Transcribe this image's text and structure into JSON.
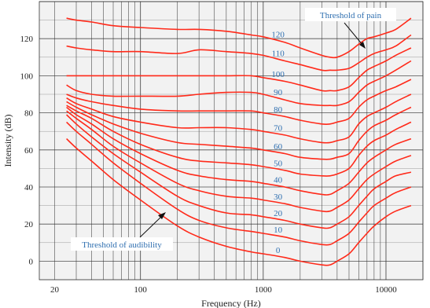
{
  "chart_data": {
    "type": "line",
    "title": "",
    "xlabel": "Frequency (Hz)",
    "ylabel": "Intensity (dB)",
    "x_scale": "log",
    "xlim": [
      15,
      20000
    ],
    "ylim": [
      -10,
      140
    ],
    "x_ticks": [
      20,
      100,
      1000,
      10000
    ],
    "x_tick_labels": [
      "20",
      "100",
      "1000",
      "10000"
    ],
    "y_ticks": [
      0,
      20,
      40,
      60,
      80,
      100,
      120
    ],
    "y_tick_labels": [
      "0",
      "20",
      "40",
      "60",
      "80",
      "100",
      "120"
    ],
    "grid": true,
    "colors": {
      "curve": "#ff2a1a",
      "label": "#2f6fb0",
      "grid": "#333333",
      "background": "#f2f2f2"
    },
    "x": [
      25,
      30,
      40,
      60,
      100,
      200,
      300,
      500,
      800,
      1000,
      1500,
      2000,
      3000,
      3500,
      4000,
      5000,
      6000,
      7000,
      8000,
      10000,
      12000,
      16000
    ],
    "series": [
      {
        "label": "120",
        "values": [
          131,
          130,
          129,
          127,
          126,
          125,
          125,
          124,
          122,
          121,
          118,
          115,
          111,
          110,
          110,
          113,
          117,
          120,
          121,
          123,
          125,
          131
        ]
      },
      {
        "label": "110",
        "values": [
          116,
          115,
          114,
          113,
          113,
          112,
          114,
          113,
          112,
          111,
          108,
          106,
          103,
          103,
          103,
          104,
          107,
          110,
          112,
          114,
          116,
          122
        ]
      },
      {
        "label": "100",
        "values": [
          100,
          100,
          100,
          100,
          100,
          100,
          100,
          100,
          100,
          99,
          97,
          95,
          92,
          92,
          92,
          94,
          99,
          103,
          105,
          108,
          111,
          115
        ]
      },
      {
        "label": "90",
        "values": [
          95,
          92,
          90,
          89,
          89,
          89,
          90,
          91,
          91,
          90,
          87,
          85,
          84,
          84,
          84,
          86,
          91,
          95,
          97,
          100,
          103,
          108
        ]
      },
      {
        "label": "80",
        "values": [
          90,
          88,
          86,
          84,
          82,
          81,
          81,
          81,
          81,
          80,
          78,
          76,
          74,
          74,
          75,
          77,
          83,
          87,
          89,
          92,
          94,
          98
        ]
      },
      {
        "label": "70",
        "values": [
          88,
          85,
          82,
          78,
          75,
          72,
          72,
          72,
          71,
          70,
          68,
          66,
          64,
          64,
          65,
          67,
          74,
          78,
          80,
          83,
          86,
          90
        ]
      },
      {
        "label": "60",
        "values": [
          86,
          83,
          79,
          74,
          69,
          64,
          63,
          62,
          61,
          60,
          58,
          56,
          55,
          55,
          56,
          58,
          65,
          70,
          73,
          76,
          79,
          83
        ]
      },
      {
        "label": "50",
        "values": [
          84,
          81,
          77,
          70,
          63,
          56,
          54,
          53,
          52,
          51,
          49,
          47,
          46,
          46,
          47,
          50,
          57,
          62,
          65,
          68,
          71,
          75
        ]
      },
      {
        "label": "40",
        "values": [
          83,
          79,
          74,
          66,
          58,
          49,
          46,
          44,
          43,
          42,
          40,
          38,
          36,
          36,
          38,
          42,
          48,
          53,
          56,
          60,
          63,
          66
        ]
      },
      {
        "label": "30",
        "values": [
          81,
          77,
          71,
          62,
          53,
          42,
          38,
          35,
          34,
          33,
          31,
          29,
          27,
          27,
          29,
          33,
          39,
          44,
          47,
          51,
          54,
          57
        ]
      },
      {
        "label": "20",
        "values": [
          79,
          74,
          67,
          58,
          48,
          35,
          30,
          26,
          25,
          24,
          22,
          20,
          18,
          18,
          20,
          24,
          30,
          35,
          39,
          43,
          46,
          48
        ]
      },
      {
        "label": "10",
        "values": [
          75,
          70,
          63,
          53,
          42,
          28,
          22,
          18,
          16,
          15,
          13,
          11,
          9,
          9,
          11,
          15,
          21,
          26,
          30,
          34,
          37,
          40
        ]
      },
      {
        "label": "0",
        "values": [
          66,
          61,
          54,
          44,
          33,
          19,
          13,
          8,
          5,
          4,
          2,
          0,
          -2,
          -2,
          0,
          4,
          10,
          15,
          19,
          24,
          27,
          30
        ]
      }
    ],
    "annotations": [
      {
        "text": "Threshold of pain"
      },
      {
        "text": "Threshold of audibility"
      }
    ]
  }
}
